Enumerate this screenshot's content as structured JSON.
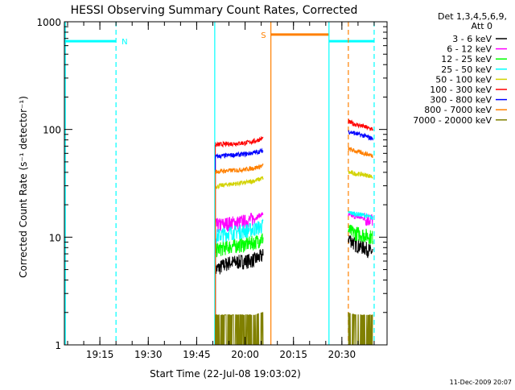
{
  "chart_data": {
    "type": "line",
    "title": "HESSI Observing Summary Count Rates, Corrected",
    "xlabel": "Start Time (22-Jul-08 19:03:02)",
    "ylabel": "Corrected Count Rate (s⁻¹ detector⁻¹)",
    "x_unit": "minutes of day (UT)",
    "xlim": [
      1144,
      1244
    ],
    "ylim": [
      1,
      1000
    ],
    "y_scale": "log",
    "grid": false,
    "x_ticks": [
      {
        "value": 1155,
        "label": "19:15"
      },
      {
        "value": 1170,
        "label": "19:30"
      },
      {
        "value": 1185,
        "label": "19:45"
      },
      {
        "value": 1200,
        "label": "20:00"
      },
      {
        "value": 1215,
        "label": "20:15"
      },
      {
        "value": 1230,
        "label": "20:30"
      }
    ],
    "y_ticks": [
      {
        "value": 1,
        "label": "1"
      },
      {
        "value": 10,
        "label": "10"
      },
      {
        "value": 100,
        "label": "100"
      },
      {
        "value": 1000,
        "label": "1000"
      }
    ],
    "legend": {
      "placement": "top-right",
      "header": [
        "Det 1,3,4,5,6,9,",
        "Att 0"
      ]
    },
    "footer_date": "11-Dec-2009 20:07",
    "series": [
      {
        "name": "3 - 6 keV",
        "color": "#000000",
        "segments": [
          {
            "x": [
              1190.8,
              1195,
              1200,
              1203,
              1205.6
            ],
            "y": [
              5.0,
              5.8,
              6.0,
              6.2,
              6.8
            ]
          },
          {
            "x": [
              1232,
              1234,
              1237,
              1239.6
            ],
            "y": [
              10.0,
              8.6,
              8.0,
              7.2
            ]
          }
        ]
      },
      {
        "name": "6 - 12 keV",
        "color": "#ff00ff",
        "segments": [
          {
            "x": [
              1190.8,
              1195,
              1200,
              1203,
              1205.6
            ],
            "y": [
              12.8,
              13.5,
              14.0,
              15.0,
              16.5
            ]
          },
          {
            "x": [
              1232,
              1234,
              1237,
              1239.6
            ],
            "y": [
              16.0,
              15.5,
              15.0,
              14.5
            ]
          }
        ]
      },
      {
        "name": "12 - 25 keV",
        "color": "#00ff00",
        "segments": [
          {
            "x": [
              1190.8,
              1195,
              1200,
              1203,
              1205.6
            ],
            "y": [
              7.6,
              8.2,
              8.6,
              9.0,
              9.8
            ]
          },
          {
            "x": [
              1232,
              1234,
              1237,
              1239.6
            ],
            "y": [
              11.5,
              11.0,
              10.5,
              10.0
            ]
          }
        ]
      },
      {
        "name": "25 - 50 keV",
        "color": "#00ffff",
        "segments": [
          {
            "x": [
              1190.8,
              1195,
              1200,
              1203,
              1205.6
            ],
            "y": [
              10.2,
              11.0,
              11.5,
              12.0,
              12.8
            ]
          },
          {
            "x": [
              1232,
              1234,
              1237,
              1239.6
            ],
            "y": [
              17.0,
              16.5,
              16.0,
              15.0
            ]
          }
        ]
      },
      {
        "name": "50 - 100 keV",
        "color": "#d2d200",
        "segments": [
          {
            "x": [
              1190.8,
              1195,
              1200,
              1203,
              1205.6
            ],
            "y": [
              29.5,
              31.0,
              32.0,
              33.5,
              35.5
            ]
          },
          {
            "x": [
              1232,
              1234,
              1237,
              1239.6
            ],
            "y": [
              40.0,
              39.0,
              38.0,
              36.5
            ]
          }
        ]
      },
      {
        "name": "100 - 300 keV",
        "color": "#ff0000",
        "segments": [
          {
            "x": [
              1190.8,
              1195,
              1200,
              1203,
              1205.6
            ],
            "y": [
              72.0,
              73.5,
              75.0,
              78.0,
              83.0
            ]
          },
          {
            "x": [
              1232,
              1234,
              1237,
              1239.6
            ],
            "y": [
              118.0,
              112.0,
              106.0,
              100.0
            ]
          }
        ]
      },
      {
        "name": "300 - 800 keV",
        "color": "#0000ff",
        "segments": [
          {
            "x": [
              1190.8,
              1195,
              1200,
              1203,
              1205.6
            ],
            "y": [
              56.0,
              57.5,
              59.0,
              61.0,
              63.5
            ]
          },
          {
            "x": [
              1232,
              1234,
              1237,
              1239.6
            ],
            "y": [
              96.0,
              92.0,
              87.0,
              82.0
            ]
          }
        ]
      },
      {
        "name": "800 - 7000 keV",
        "color": "#ff8000",
        "segments": [
          {
            "x": [
              1190.8,
              1195,
              1200,
              1203,
              1205.6
            ],
            "y": [
              40.5,
              41.5,
              42.5,
              44.0,
              46.0
            ]
          },
          {
            "x": [
              1232,
              1234,
              1237,
              1239.6
            ],
            "y": [
              66.0,
              63.0,
              60.0,
              57.0
            ]
          }
        ]
      },
      {
        "name": "7000 - 20000 keV",
        "color": "#808000",
        "segments": [
          {
            "x": [
              1190.8,
              1195,
              1200,
              1203,
              1205.6
            ],
            "y": [
              1.9,
              1.9,
              1.9,
              1.9,
              2.0
            ]
          },
          {
            "x": [
              1232,
              1234,
              1237,
              1239.6
            ],
            "y": [
              2.0,
              1.9,
              1.9,
              1.9
            ]
          }
        ]
      }
    ],
    "annotations": [
      {
        "type": "bar",
        "label": "N",
        "color": "#00ffff",
        "x": [
          1144,
          1160
        ],
        "y": 660
      },
      {
        "type": "bar",
        "label": "",
        "color": "#00ffff",
        "x": [
          1226,
          1240
        ],
        "y": 660
      },
      {
        "type": "bar",
        "label": "S",
        "color": "#ff8000",
        "x": [
          1208,
          1226
        ],
        "y": 760
      },
      {
        "type": "vline",
        "label": "",
        "color": "#00ffff",
        "x": 1160,
        "style": "dashed"
      },
      {
        "type": "vline",
        "label": "",
        "color": "#00ffff",
        "x": 1240,
        "style": "dashed"
      },
      {
        "type": "vline",
        "label": "",
        "color": "#ff8000",
        "x": 1232,
        "style": "dashed"
      },
      {
        "type": "vline",
        "label": "",
        "color": "#00ffff",
        "x": 1144.3,
        "style": "solid"
      },
      {
        "type": "vline",
        "label": "",
        "color": "#00ffff",
        "x": 1190.6,
        "style": "solid"
      },
      {
        "type": "vline",
        "label": "",
        "color": "#00ffff",
        "x": 1226,
        "style": "solid"
      },
      {
        "type": "vline",
        "label": "",
        "color": "#ff8000",
        "x": 1208,
        "style": "solid"
      }
    ]
  }
}
